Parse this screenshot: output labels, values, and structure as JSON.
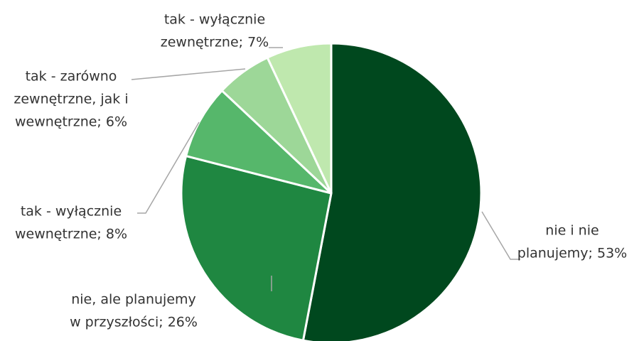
{
  "chart_data": {
    "type": "pie",
    "labels": [
      [
        "nie i nie",
        "planujemy; 53%"
      ],
      [
        "nie, ale planujemy",
        "w przyszłości; 26%"
      ],
      [
        "tak - wyłącznie",
        "wewnętrzne; 8%"
      ],
      [
        "tak - zarówno",
        "zewnętrzne, jak i",
        "wewnętrzne; 6%"
      ],
      [
        "tak - wyłącznie",
        "zewnętrzne; 7%"
      ]
    ],
    "values": [
      53,
      26,
      8,
      6,
      7
    ],
    "colors": [
      "#00481e",
      "#1f8741",
      "#56b76b",
      "#9dd798",
      "#bfe8ae"
    ]
  }
}
